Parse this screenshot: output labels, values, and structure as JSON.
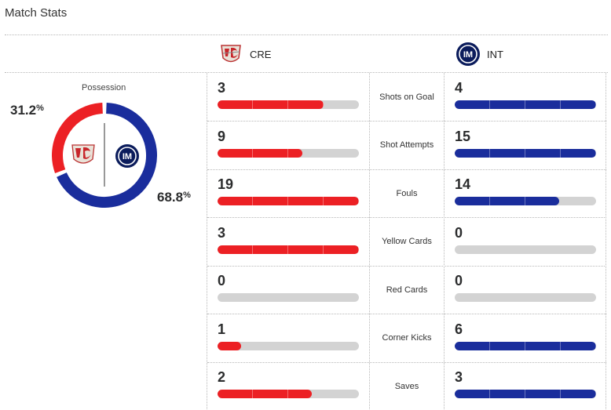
{
  "title": "Match Stats",
  "home": {
    "abbr": "CRE",
    "possession": "31.2",
    "possession_fraction": 0.312,
    "color": "#ec2024"
  },
  "away": {
    "abbr": "INT",
    "possession": "68.8",
    "possession_fraction": 0.688,
    "color": "#1a2d9c"
  },
  "possession_label": "Possession",
  "percent_sign": "%",
  "stats": [
    {
      "label": "Shots on Goal",
      "home": "3",
      "away": "4",
      "home_fill": 0.75,
      "away_fill": 1.0
    },
    {
      "label": "Shot Attempts",
      "home": "9",
      "away": "15",
      "home_fill": 0.6,
      "away_fill": 1.0
    },
    {
      "label": "Fouls",
      "home": "19",
      "away": "14",
      "home_fill": 1.0,
      "away_fill": 0.737
    },
    {
      "label": "Yellow Cards",
      "home": "3",
      "away": "0",
      "home_fill": 1.0,
      "away_fill": 0
    },
    {
      "label": "Red Cards",
      "home": "0",
      "away": "0",
      "home_fill": 0,
      "away_fill": 0
    },
    {
      "label": "Corner Kicks",
      "home": "1",
      "away": "6",
      "home_fill": 0.167,
      "away_fill": 1.0
    },
    {
      "label": "Saves",
      "home": "2",
      "away": "3",
      "home_fill": 0.667,
      "away_fill": 1.0
    }
  ]
}
